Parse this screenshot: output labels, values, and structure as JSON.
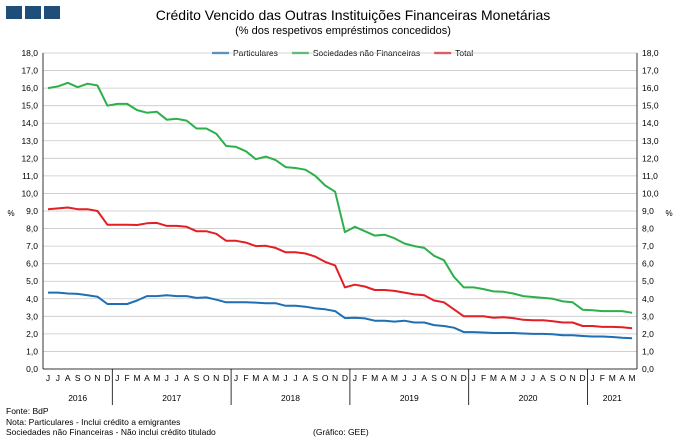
{
  "chart_data": {
    "type": "line",
    "title": "Crédito Vencido das Outras Instituições Financeiras Monetárias",
    "subtitle": "(% dos respetivos empréstimos concedidos)",
    "ylabel_left": "%",
    "ylabel_right": "%",
    "ylim": [
      0,
      18
    ],
    "ytick_step": 1,
    "month_labels": [
      "J",
      "J",
      "A",
      "S",
      "O",
      "N",
      "D",
      "J",
      "F",
      "M",
      "A",
      "M",
      "J",
      "J",
      "A",
      "S",
      "O",
      "N",
      "D",
      "J",
      "F",
      "M",
      "A",
      "M",
      "J",
      "J",
      "A",
      "S",
      "O",
      "N",
      "D",
      "J",
      "F",
      "M",
      "A",
      "M",
      "J",
      "J",
      "A",
      "S",
      "O",
      "N",
      "D",
      "J",
      "F",
      "M",
      "A",
      "M",
      "J",
      "J",
      "A",
      "S",
      "O",
      "N",
      "D",
      "J",
      "F",
      "M",
      "A",
      "M"
    ],
    "years": [
      {
        "label": "2016",
        "start": 0,
        "count": 7
      },
      {
        "label": "2017",
        "start": 7,
        "count": 12
      },
      {
        "label": "2018",
        "start": 19,
        "count": 12
      },
      {
        "label": "2019",
        "start": 31,
        "count": 12
      },
      {
        "label": "2020",
        "start": 43,
        "count": 12
      },
      {
        "label": "2021",
        "start": 55,
        "count": 5
      }
    ],
    "series": [
      {
        "name": "Particulares",
        "color": "#1f6fb5",
        "values": [
          4.35,
          4.35,
          4.3,
          4.28,
          4.2,
          4.12,
          3.7,
          3.7,
          3.7,
          3.9,
          4.15,
          4.15,
          4.2,
          4.15,
          4.15,
          4.05,
          4.08,
          3.95,
          3.8,
          3.8,
          3.8,
          3.78,
          3.75,
          3.75,
          3.6,
          3.6,
          3.55,
          3.45,
          3.4,
          3.3,
          2.9,
          2.92,
          2.88,
          2.75,
          2.75,
          2.7,
          2.75,
          2.65,
          2.65,
          2.5,
          2.45,
          2.35,
          2.1,
          2.1,
          2.08,
          2.05,
          2.05,
          2.05,
          2.02,
          2.0,
          2.0,
          1.98,
          1.92,
          1.92,
          1.88,
          1.85,
          1.85,
          1.82,
          1.78,
          1.75
        ]
      },
      {
        "name": "Sociedades não Financeiras",
        "color": "#2db04b",
        "values": [
          16.0,
          16.1,
          16.3,
          16.05,
          16.25,
          16.15,
          15.0,
          15.1,
          15.1,
          14.75,
          14.6,
          14.65,
          14.2,
          14.25,
          14.15,
          13.7,
          13.7,
          13.4,
          12.7,
          12.65,
          12.4,
          11.95,
          12.1,
          11.9,
          11.5,
          11.45,
          11.35,
          11.0,
          10.45,
          10.1,
          7.8,
          8.1,
          7.85,
          7.6,
          7.65,
          7.45,
          7.15,
          7.0,
          6.9,
          6.45,
          6.2,
          5.25,
          4.65,
          4.65,
          4.55,
          4.42,
          4.4,
          4.3,
          4.15,
          4.1,
          4.05,
          4.0,
          3.85,
          3.8,
          3.38,
          3.35,
          3.3,
          3.3,
          3.3,
          3.2
        ]
      },
      {
        "name": "Total",
        "color": "#e31e24",
        "values": [
          9.1,
          9.15,
          9.2,
          9.1,
          9.1,
          9.0,
          8.22,
          8.22,
          8.22,
          8.2,
          8.3,
          8.32,
          8.15,
          8.15,
          8.1,
          7.85,
          7.85,
          7.7,
          7.3,
          7.3,
          7.2,
          7.0,
          7.02,
          6.9,
          6.65,
          6.65,
          6.58,
          6.4,
          6.1,
          5.9,
          4.65,
          4.8,
          4.7,
          4.5,
          4.5,
          4.45,
          4.35,
          4.25,
          4.2,
          3.9,
          3.8,
          3.4,
          3.0,
          3.0,
          3.0,
          2.92,
          2.95,
          2.9,
          2.8,
          2.78,
          2.78,
          2.72,
          2.65,
          2.65,
          2.45,
          2.45,
          2.4,
          2.4,
          2.38,
          2.32
        ]
      }
    ]
  },
  "footer": {
    "source": "Fonte: BdP",
    "note1": "Nota: Particulares - Inclui crédito a emigrantes",
    "note2": "Sociedades não Financeiras - Não inclui crédito titulado",
    "credit": "(Gráfico: GEE)"
  },
  "colors": {
    "logo": "#1f4e79",
    "grid": "#c8c8c8"
  }
}
